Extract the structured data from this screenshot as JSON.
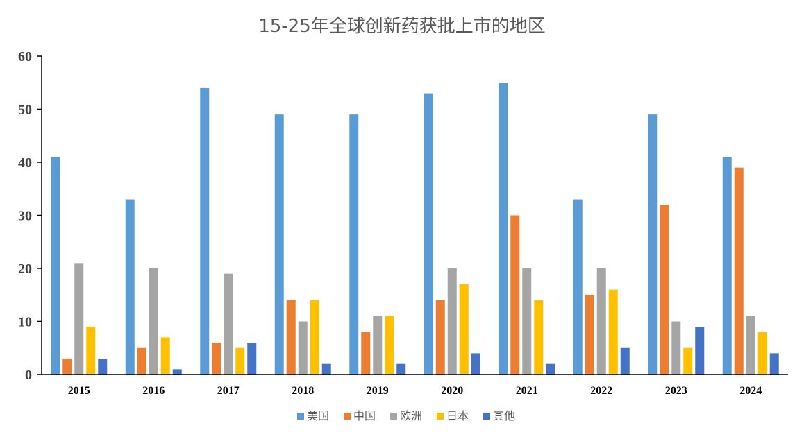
{
  "chart_data": {
    "type": "bar",
    "title": "15-25年全球创新药获批上市的地区",
    "xlabel": "",
    "ylabel": "",
    "ylim": [
      0,
      60
    ],
    "yticks": [
      0,
      10,
      20,
      30,
      40,
      50,
      60
    ],
    "grid": false,
    "legend_position": "bottom",
    "categories": [
      "2015",
      "2016",
      "2017",
      "2018",
      "2019",
      "2020",
      "2021",
      "2022",
      "2023",
      "2024"
    ],
    "series": [
      {
        "name": "美国",
        "color": "#5B9BD5",
        "values": [
          41,
          33,
          54,
          49,
          49,
          53,
          55,
          33,
          49,
          41
        ]
      },
      {
        "name": "中国",
        "color": "#ED7D31",
        "values": [
          3,
          5,
          6,
          14,
          8,
          14,
          30,
          15,
          32,
          39
        ]
      },
      {
        "name": "欧洲",
        "color": "#A5A5A5",
        "values": [
          21,
          20,
          19,
          10,
          11,
          20,
          20,
          20,
          10,
          11
        ]
      },
      {
        "name": "日本",
        "color": "#FFC000",
        "values": [
          9,
          7,
          5,
          14,
          11,
          17,
          14,
          16,
          5,
          8
        ]
      },
      {
        "name": "其他",
        "color": "#4472C4",
        "values": [
          3,
          1,
          6,
          2,
          2,
          4,
          2,
          5,
          9,
          4
        ]
      }
    ]
  }
}
